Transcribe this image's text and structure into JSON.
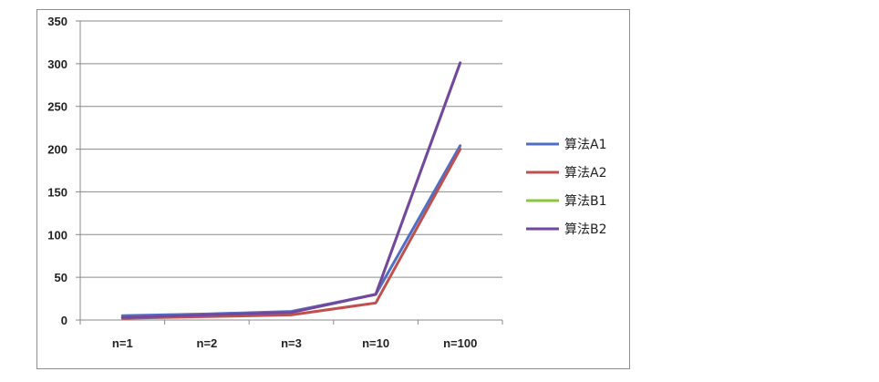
{
  "chart_data": {
    "type": "line",
    "categories": [
      "n=1",
      "n=2",
      "n=3",
      "n=10",
      "n=100"
    ],
    "ylim": [
      0,
      350
    ],
    "yticks": [
      0,
      50,
      100,
      150,
      200,
      250,
      300,
      350
    ],
    "grid": true,
    "legend_position": "right",
    "series": [
      {
        "name": "算法A1",
        "color": "#4F6FC7",
        "values": [
          5,
          7,
          10,
          30,
          204
        ]
      },
      {
        "name": "算法A2",
        "color": "#C0504D",
        "values": [
          2,
          4,
          6,
          20,
          200
        ]
      },
      {
        "name": "算法B1",
        "color": "#8CC43E",
        "values": [
          3,
          6,
          9,
          30,
          301
        ]
      },
      {
        "name": "算法B2",
        "color": "#7346A2",
        "values": [
          3,
          6,
          9,
          30,
          301
        ]
      }
    ]
  }
}
